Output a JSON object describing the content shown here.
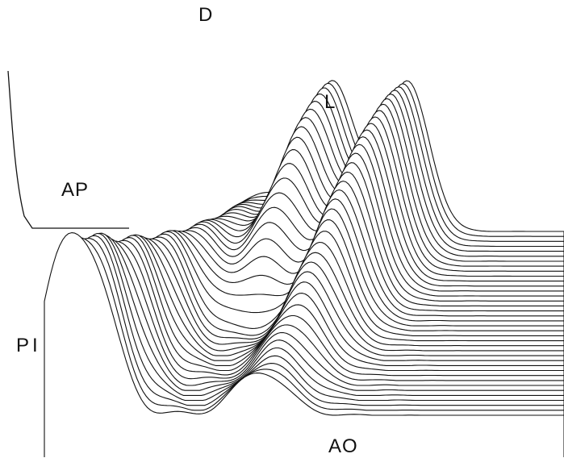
{
  "chart_data": {
    "type": "waterfall-3d",
    "peak_labels": {
      "d": "D",
      "l": "L",
      "ap": "AP",
      "pi": "PI",
      "ao": "AO"
    },
    "trace_count": 38,
    "colors": {
      "line": "#111111",
      "fill": "#ffffff"
    }
  }
}
